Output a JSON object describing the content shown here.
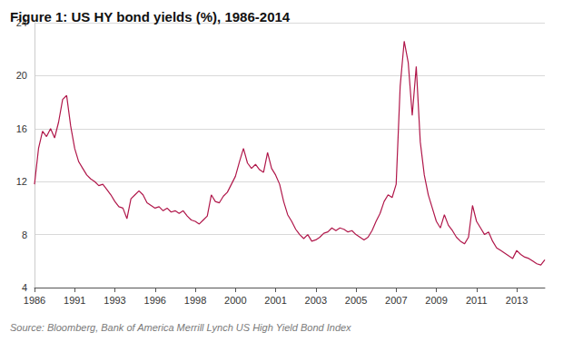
{
  "chart_data": {
    "type": "line",
    "title": "Figure 1: US HY bond yields (%), 1986-2014",
    "source": "Source: Bloomberg, Bank of America Merrill Lynch US High Yield Bond Index",
    "categories": [
      "1986",
      null,
      null,
      null,
      null,
      null,
      null,
      null,
      null,
      null,
      "1991",
      null,
      null,
      null,
      null,
      null,
      null,
      null,
      null,
      null,
      "1993",
      null,
      null,
      null,
      null,
      null,
      null,
      null,
      null,
      null,
      "1996",
      null,
      null,
      null,
      null,
      null,
      null,
      null,
      null,
      null,
      "1998",
      null,
      null,
      null,
      null,
      null,
      null,
      null,
      null,
      null,
      "2000",
      null,
      null,
      null,
      null,
      null,
      null,
      null,
      null,
      null,
      "2001",
      null,
      null,
      null,
      null,
      null,
      null,
      null,
      null,
      null,
      "2003",
      null,
      null,
      null,
      null,
      null,
      null,
      null,
      null,
      null,
      "2005",
      null,
      null,
      null,
      null,
      null,
      null,
      null,
      null,
      null,
      "2007",
      null,
      null,
      null,
      null,
      null,
      null,
      null,
      null,
      null,
      "2009",
      null,
      null,
      null,
      null,
      null,
      null,
      null,
      null,
      null,
      "2011",
      null,
      null,
      null,
      null,
      null,
      null,
      null,
      null,
      null,
      "2013",
      null,
      null,
      null,
      null,
      null,
      null,
      null
    ],
    "values": [
      11.8,
      14.5,
      15.8,
      15.4,
      16,
      15.3,
      16.5,
      18.2,
      18.5,
      16.2,
      14.5,
      13.5,
      13,
      12.5,
      12.2,
      12,
      11.7,
      11.8,
      11.4,
      11,
      10.5,
      10.1,
      10,
      9.2,
      10.7,
      11,
      11.3,
      11,
      10.4,
      10.2,
      10,
      10.1,
      9.8,
      10,
      9.7,
      9.8,
      9.6,
      9.8,
      9.4,
      9.1,
      9,
      8.8,
      9.1,
      9.4,
      11,
      10.5,
      10.4,
      10.9,
      11.2,
      11.8,
      12.4,
      13.5,
      14.5,
      13.4,
      13,
      13.3,
      12.9,
      12.7,
      14.2,
      13,
      12.5,
      11.8,
      10.5,
      9.5,
      9,
      8.4,
      8,
      7.7,
      8,
      7.5,
      7.6,
      7.8,
      8.1,
      8.2,
      8.5,
      8.3,
      8.5,
      8.4,
      8.2,
      8.3,
      8,
      7.8,
      7.6,
      7.8,
      8.3,
      9,
      9.6,
      10.5,
      11,
      10.8,
      11.8,
      19.2,
      22.6,
      21,
      17,
      20.7,
      15,
      12.5,
      11,
      10,
      9,
      8.5,
      9.5,
      8.7,
      8.3,
      7.8,
      7.5,
      7.3,
      7.8,
      10.2,
      9,
      8.5,
      8,
      8.2,
      7.5,
      7,
      6.8,
      6.6,
      6.4,
      6.2,
      6.8,
      6.5,
      6.3,
      6.2,
      6,
      5.8,
      5.7,
      6.1
    ],
    "color": "#b0174a",
    "ylim": [
      4,
      24
    ],
    "yticks": [
      4,
      8,
      12,
      16,
      20,
      24
    ],
    "grid": true
  }
}
